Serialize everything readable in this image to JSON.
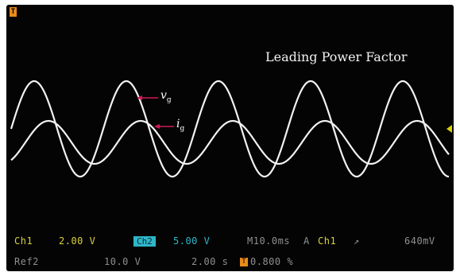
{
  "title": "Leading Power Factor",
  "signals": {
    "voltage": {
      "symbol": "v",
      "subscript": "g"
    },
    "current": {
      "symbol": "i",
      "subscript": "g"
    }
  },
  "status": {
    "ch1_label": "Ch1",
    "ch1_scale": "2.00 V",
    "ch2_label": "Ch2",
    "ch2_scale": "5.00 V",
    "timebase": "M10.0ms",
    "trigger_mode": "A",
    "trigger_source": "Ch1",
    "trigger_slope": "↗",
    "trigger_level": "640mV",
    "ref_label": "Ref2",
    "ref_scale": "10.0 V",
    "ref_time": "2.00 s",
    "ref_icon": "T",
    "ref_value": "0.800 %"
  },
  "markers": {
    "trigger_position_icon": "T"
  },
  "colors": {
    "screen": "#040404",
    "trace": "#f2f2f2",
    "arrow": "#d01a5a",
    "ch1": "#d9d23a",
    "ch2": "#2fb7c9",
    "ref": "#8f8f8f",
    "marker": "#e88a1a"
  }
}
